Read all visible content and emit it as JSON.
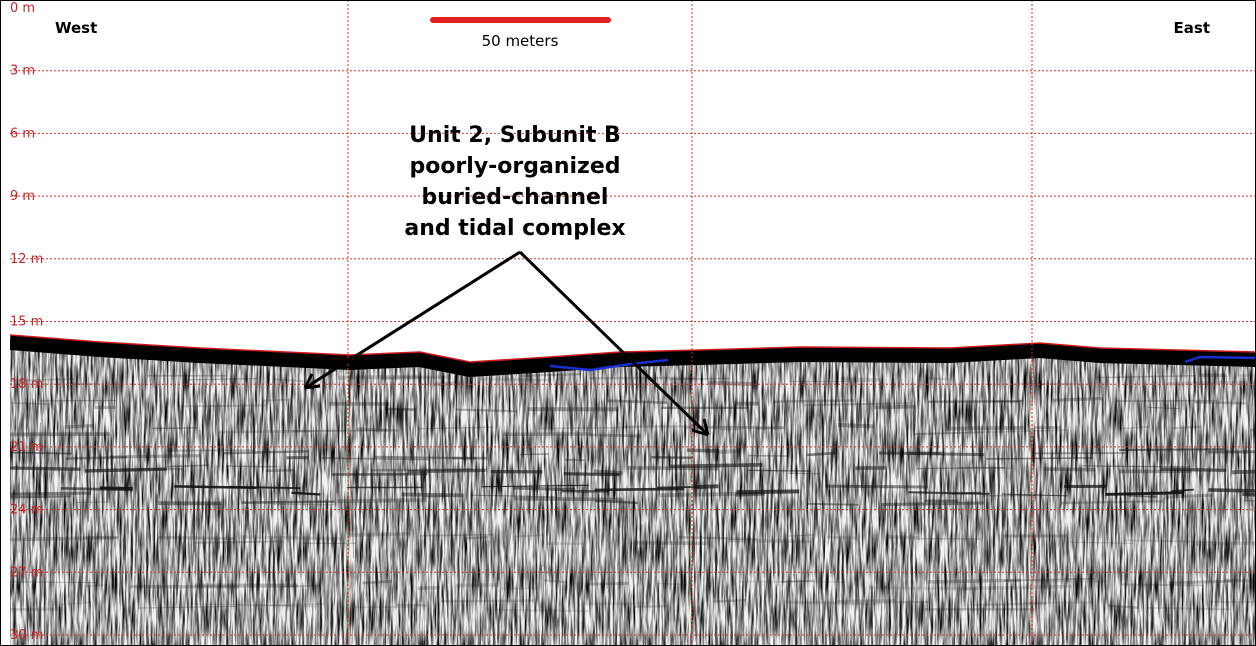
{
  "header": {
    "west": "West",
    "east": "East",
    "scale_bar": "50 meters"
  },
  "depth_labels": [
    "0 m",
    "3 m",
    "6 m",
    "9 m",
    "12 m",
    "15 m",
    "18 m",
    "21 m",
    "24 m",
    "27 m",
    "30 m"
  ],
  "annotation": {
    "lines": [
      "Unit 2, Subunit B",
      "poorly-organized",
      "buried-channel",
      "and tidal complex"
    ]
  }
}
